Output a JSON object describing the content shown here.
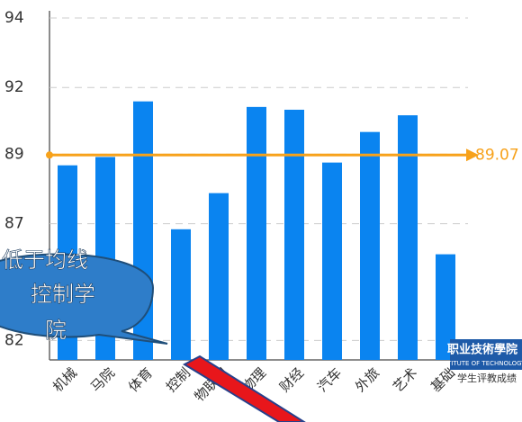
{
  "chart_data": {
    "type": "bar",
    "categories": [
      "机械",
      "马院",
      "体育",
      "控制",
      "物联网",
      "物理",
      "财经",
      "汽车",
      "外旅",
      "艺术",
      "基础"
    ],
    "values": [
      88.7,
      89.0,
      91.0,
      86.4,
      87.7,
      90.8,
      90.7,
      88.8,
      89.9,
      90.5,
      85.5
    ],
    "color": "#0a84f0",
    "ylim": [
      81.7,
      94
    ],
    "yticks": [
      94,
      {
        "value": 91.5,
        "label": "92"
      },
      {
        "value": 89.1,
        "label": "89"
      },
      {
        "value": 86.6,
        "label": "87"
      },
      {
        "value": 82.4,
        "label": "82"
      }
    ],
    "grid": true,
    "average": {
      "value": 89.07,
      "color": "#f7a21b"
    },
    "callout": [
      "低于均线",
      "控制学",
      "院"
    ],
    "logo": "职业技術學院",
    "logo_subtitle": "TITUTE OF TECHNOLOGY",
    "caption": "学生评教成绩"
  }
}
